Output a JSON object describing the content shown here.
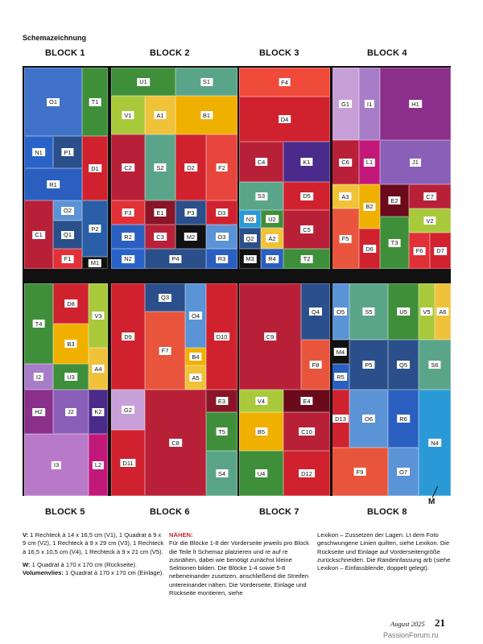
{
  "page": {
    "heading": "Schemazeichnung",
    "blocks_top": [
      "BLOCK 1",
      "BLOCK 2",
      "BLOCK 3",
      "BLOCK 4"
    ],
    "blocks_bottom": [
      "BLOCK 5",
      "BLOCK 6",
      "BLOCK 7",
      "BLOCK 8"
    ],
    "m_mark": "M"
  },
  "colors": {
    "blue": "#2a5fc0",
    "green": "#3f8f3a",
    "red": "#c8202c",
    "purple": "#8a3fa0",
    "teal": "#5aa58a",
    "lime": "#a8c93a",
    "yellow": "#f0b000",
    "orange": "#f07a2a"
  },
  "patches": [
    {
      "label": "O1",
      "c": "#3f72c8",
      "r": [
        0,
        0,
        72,
        85
      ]
    },
    {
      "label": "T1",
      "c": "#3f8f3a",
      "r": [
        72,
        0,
        32,
        85
      ]
    },
    {
      "label": "N1",
      "c": "#2a63c8",
      "r": [
        0,
        85,
        36,
        40
      ]
    },
    {
      "label": "P1",
      "c": "#2a4f8a",
      "r": [
        36,
        85,
        36,
        40
      ]
    },
    {
      "label": "D1",
      "c": "#d0222e",
      "r": [
        72,
        85,
        32,
        80
      ]
    },
    {
      "label": "R1",
      "c": "#2a5fc0",
      "r": [
        0,
        125,
        72,
        40
      ]
    },
    {
      "label": "C1",
      "c": "#b82038",
      "r": [
        0,
        165,
        36,
        85
      ]
    },
    {
      "label": "O2",
      "c": "#5a93d6",
      "r": [
        36,
        165,
        36,
        25
      ]
    },
    {
      "label": "Q1",
      "c": "#2a4f8a",
      "r": [
        36,
        190,
        36,
        35
      ]
    },
    {
      "label": "P2",
      "c": "#2a5fa8",
      "r": [
        72,
        165,
        32,
        70
      ]
    },
    {
      "label": "F1",
      "c": "#e23038",
      "r": [
        36,
        225,
        36,
        25
      ]
    },
    {
      "label": "M1",
      "c": "#111111",
      "r": [
        72,
        235,
        32,
        15
      ]
    },
    {
      "label": "U1",
      "c": "#3f8f3a",
      "r": [
        108,
        0,
        80,
        35
      ]
    },
    {
      "label": "S1",
      "c": "#5aa58a",
      "r": [
        188,
        0,
        77,
        35
      ]
    },
    {
      "label": "V1",
      "c": "#a8c93a",
      "r": [
        108,
        35,
        42,
        48
      ]
    },
    {
      "label": "A1",
      "c": "#f0c23a",
      "r": [
        150,
        35,
        38,
        48
      ]
    },
    {
      "label": "B1",
      "c": "#f0b000",
      "r": [
        188,
        35,
        77,
        48
      ]
    },
    {
      "label": "C2",
      "c": "#b82038",
      "r": [
        108,
        83,
        42,
        82
      ]
    },
    {
      "label": "S2",
      "c": "#5aa58a",
      "r": [
        150,
        83,
        38,
        82
      ]
    },
    {
      "label": "D2",
      "c": "#d0222e",
      "r": [
        188,
        83,
        38,
        82
      ]
    },
    {
      "label": "F2",
      "c": "#e8453c",
      "r": [
        226,
        83,
        39,
        82
      ]
    },
    {
      "label": "F3",
      "c": "#e23038",
      "r": [
        108,
        165,
        42,
        30
      ]
    },
    {
      "label": "E1",
      "c": "#8a1428",
      "r": [
        150,
        165,
        38,
        30
      ]
    },
    {
      "label": "P3",
      "c": "#2a4f8a",
      "r": [
        188,
        165,
        38,
        30
      ]
    },
    {
      "label": "D3",
      "c": "#d0222e",
      "r": [
        226,
        165,
        39,
        30
      ]
    },
    {
      "label": "R2",
      "c": "#2a5fc0",
      "r": [
        108,
        195,
        42,
        30
      ]
    },
    {
      "label": "C3",
      "c": "#b82038",
      "r": [
        150,
        195,
        38,
        30
      ]
    },
    {
      "label": "M2",
      "c": "#111111",
      "r": [
        188,
        195,
        38,
        30
      ]
    },
    {
      "label": "O3",
      "c": "#5a93d6",
      "r": [
        226,
        195,
        39,
        30
      ]
    },
    {
      "label": "N2",
      "c": "#2a63c8",
      "r": [
        108,
        225,
        42,
        25
      ]
    },
    {
      "label": "P4",
      "c": "#2a4f8a",
      "r": [
        150,
        225,
        76,
        25
      ]
    },
    {
      "label": "R3",
      "c": "#2a5fc0",
      "r": [
        226,
        225,
        39,
        25
      ]
    },
    {
      "label": "F4",
      "c": "#f04a3a",
      "r": [
        267,
        0,
        113,
        36
      ]
    },
    {
      "label": "D4",
      "c": "#d0222e",
      "r": [
        267,
        36,
        113,
        56
      ]
    },
    {
      "label": "C4",
      "c": "#b82038",
      "r": [
        267,
        92,
        55,
        50
      ]
    },
    {
      "label": "K1",
      "c": "#4a2a8a",
      "r": [
        322,
        92,
        58,
        50
      ]
    },
    {
      "label": "S3",
      "c": "#5aa58a",
      "r": [
        267,
        142,
        55,
        35
      ]
    },
    {
      "label": "D5",
      "c": "#d0222e",
      "r": [
        322,
        142,
        58,
        35
      ]
    },
    {
      "label": "N3",
      "c": "#2a9ad6",
      "r": [
        267,
        177,
        27,
        22
      ]
    },
    {
      "label": "U2",
      "c": "#3f8f3a",
      "r": [
        294,
        177,
        28,
        22
      ]
    },
    {
      "label": "C5",
      "c": "#b82038",
      "r": [
        322,
        177,
        58,
        48
      ]
    },
    {
      "label": "Q2",
      "c": "#2a4f8a",
      "r": [
        267,
        199,
        27,
        26
      ]
    },
    {
      "label": "A2",
      "c": "#f0c23a",
      "r": [
        294,
        199,
        28,
        26
      ]
    },
    {
      "label": "M3",
      "c": "#111111",
      "r": [
        267,
        225,
        27,
        25
      ]
    },
    {
      "label": "R4",
      "c": "#2a5fc0",
      "r": [
        294,
        225,
        28,
        25
      ]
    },
    {
      "label": "T2",
      "c": "#3f8f3a",
      "r": [
        322,
        225,
        58,
        25
      ]
    },
    {
      "label": "G1",
      "c": "#c8a0d8",
      "r": [
        382,
        0,
        34,
        90
      ]
    },
    {
      "label": "I1",
      "c": "#a77dc8",
      "r": [
        416,
        0,
        26,
        90
      ]
    },
    {
      "label": "H1",
      "c": "#8a2f8a",
      "r": [
        442,
        0,
        88,
        90
      ]
    },
    {
      "label": "C6",
      "c": "#b82038",
      "r": [
        382,
        90,
        34,
        55
      ]
    },
    {
      "label": "L1",
      "c": "#c2187a",
      "r": [
        416,
        90,
        26,
        55
      ]
    },
    {
      "label": "J1",
      "c": "#8a5fb8",
      "r": [
        442,
        90,
        88,
        55
      ]
    },
    {
      "label": "A3",
      "c": "#f0c23a",
      "r": [
        382,
        145,
        34,
        30
      ]
    },
    {
      "label": "B2",
      "c": "#f0b000",
      "r": [
        416,
        145,
        26,
        55
      ]
    },
    {
      "label": "E2",
      "c": "#6a0a1a",
      "r": [
        442,
        145,
        36,
        40
      ]
    },
    {
      "label": "C7",
      "c": "#b82038",
      "r": [
        478,
        145,
        52,
        30
      ]
    },
    {
      "label": "F5",
      "c": "#e8553c",
      "r": [
        382,
        175,
        34,
        75
      ]
    },
    {
      "label": "V2",
      "c": "#a8c93a",
      "r": [
        478,
        175,
        52,
        30
      ]
    },
    {
      "label": "D6",
      "c": "#d0222e",
      "r": [
        416,
        200,
        26,
        50
      ]
    },
    {
      "label": "T3",
      "c": "#3f8f3a",
      "r": [
        442,
        185,
        36,
        65
      ]
    },
    {
      "label": "F6",
      "c": "#e23038",
      "r": [
        478,
        205,
        26,
        45
      ]
    },
    {
      "label": "D7",
      "c": "#d0222e",
      "r": [
        504,
        205,
        26,
        45
      ]
    },
    {
      "label": "D8",
      "c": "#d0222e",
      "r": [
        36,
        268,
        44,
        50
      ]
    },
    {
      "label": "T4",
      "c": "#3f8f3a",
      "r": [
        0,
        268,
        36,
        100
      ]
    },
    {
      "label": "V3",
      "c": "#a8c93a",
      "r": [
        80,
        268,
        24,
        80
      ]
    },
    {
      "label": "B3",
      "c": "#f0b000",
      "r": [
        36,
        318,
        44,
        50
      ]
    },
    {
      "label": "I2",
      "c": "#a77dc8",
      "r": [
        0,
        368,
        36,
        32
      ]
    },
    {
      "label": "U3",
      "c": "#3f8f3a",
      "r": [
        36,
        368,
        44,
        32
      ]
    },
    {
      "label": "A4",
      "c": "#f0c23a",
      "r": [
        80,
        348,
        24,
        52
      ]
    },
    {
      "label": "H2",
      "c": "#8a2f8a",
      "r": [
        0,
        400,
        36,
        55
      ]
    },
    {
      "label": "J2",
      "c": "#8a5fb8",
      "r": [
        36,
        400,
        44,
        55
      ]
    },
    {
      "label": "K2",
      "c": "#4a2a8a",
      "r": [
        80,
        400,
        24,
        55
      ]
    },
    {
      "label": "I3",
      "c": "#b87ac8",
      "r": [
        0,
        455,
        80,
        77
      ]
    },
    {
      "label": "L2",
      "c": "#c2187a",
      "r": [
        80,
        455,
        24,
        77
      ]
    },
    {
      "label": "Q3",
      "c": "#2a4f8a",
      "r": [
        150,
        268,
        50,
        35
      ]
    },
    {
      "label": "D9",
      "c": "#d0222e",
      "r": [
        108,
        268,
        42,
        132
      ]
    },
    {
      "label": "O4",
      "c": "#5a93d6",
      "r": [
        200,
        268,
        26,
        80
      ]
    },
    {
      "label": "F7",
      "c": "#e8553c",
      "r": [
        150,
        303,
        50,
        97
      ]
    },
    {
      "label": "B4",
      "c": "#f0b000",
      "r": [
        200,
        348,
        26,
        22
      ]
    },
    {
      "label": "A5",
      "c": "#f0c23a",
      "r": [
        200,
        370,
        26,
        30
      ]
    },
    {
      "label": "D10",
      "c": "#d0222e",
      "r": [
        226,
        268,
        39,
        132
      ]
    },
    {
      "label": "G2",
      "c": "#c8a0d8",
      "r": [
        108,
        400,
        42,
        50
      ]
    },
    {
      "label": "C8",
      "c": "#b82038",
      "r": [
        150,
        400,
        76,
        132
      ]
    },
    {
      "label": "D11",
      "c": "#d0222e",
      "r": [
        108,
        450,
        42,
        82
      ]
    },
    {
      "label": "E3",
      "c": "#8a1428",
      "r": [
        226,
        400,
        39,
        28
      ]
    },
    {
      "label": "T5",
      "c": "#3f8f3a",
      "r": [
        226,
        428,
        39,
        48
      ]
    },
    {
      "label": "S4",
      "c": "#5aa58a",
      "r": [
        226,
        476,
        39,
        56
      ]
    },
    {
      "label": "C9",
      "c": "#b82038",
      "r": [
        267,
        268,
        77,
        132
      ]
    },
    {
      "label": "Q4",
      "c": "#2a4f8a",
      "r": [
        344,
        268,
        36,
        70
      ]
    },
    {
      "label": "F8",
      "c": "#e8553c",
      "r": [
        344,
        338,
        36,
        62
      ]
    },
    {
      "label": "V4",
      "c": "#a8c93a",
      "r": [
        267,
        400,
        55,
        28
      ]
    },
    {
      "label": "E4",
      "c": "#6a0a1a",
      "r": [
        322,
        400,
        58,
        28
      ]
    },
    {
      "label": "B5",
      "c": "#f0b000",
      "r": [
        267,
        428,
        55,
        48
      ]
    },
    {
      "label": "C10",
      "c": "#b82038",
      "r": [
        322,
        428,
        58,
        48
      ]
    },
    {
      "label": "U4",
      "c": "#3f8f3a",
      "r": [
        267,
        476,
        55,
        56
      ]
    },
    {
      "label": "D12",
      "c": "#d0222e",
      "r": [
        322,
        476,
        58,
        56
      ]
    },
    {
      "label": "O5",
      "c": "#5a93d6",
      "r": [
        382,
        268,
        22,
        70
      ]
    },
    {
      "label": "S5",
      "c": "#5aa58a",
      "r": [
        404,
        268,
        48,
        70
      ]
    },
    {
      "label": "U5",
      "c": "#3f8f3a",
      "r": [
        452,
        268,
        38,
        70
      ]
    },
    {
      "label": "V5",
      "c": "#a8c93a",
      "r": [
        490,
        268,
        20,
        70
      ]
    },
    {
      "label": "A6",
      "c": "#f0c23a",
      "r": [
        510,
        268,
        20,
        70
      ]
    },
    {
      "label": "M4",
      "c": "#111111",
      "r": [
        382,
        338,
        22,
        30
      ]
    },
    {
      "label": "R5",
      "c": "#2a5fc0",
      "r": [
        382,
        368,
        22,
        32
      ]
    },
    {
      "label": "P5",
      "c": "#2a4f8a",
      "r": [
        404,
        338,
        48,
        62
      ]
    },
    {
      "label": "Q5",
      "c": "#2a4f8a",
      "r": [
        452,
        338,
        38,
        62
      ]
    },
    {
      "label": "S6",
      "c": "#5aa58a",
      "r": [
        490,
        338,
        40,
        62
      ]
    },
    {
      "label": "D13",
      "c": "#d0222e",
      "r": [
        382,
        400,
        22,
        72
      ]
    },
    {
      "label": "O6",
      "c": "#5a93d6",
      "r": [
        404,
        400,
        48,
        72
      ]
    },
    {
      "label": "R6",
      "c": "#2a5fc0",
      "r": [
        452,
        400,
        38,
        72
      ]
    },
    {
      "label": "N4",
      "c": "#2a9ad6",
      "r": [
        490,
        400,
        40,
        132
      ]
    },
    {
      "label": "F9",
      "c": "#e8553c",
      "r": [
        382,
        472,
        70,
        60
      ]
    },
    {
      "label": "O7",
      "c": "#5a93d6",
      "r": [
        452,
        472,
        38,
        60
      ]
    }
  ],
  "text": {
    "col1": {
      "v_label": "V:",
      "v_text": " 1 Rechteck à 14 x 16,5 cm (V1), 1 Quadrat à 9 x 9 cm (V2), 1 Rechteck à 9 x 29 cm (V3), 1 Rechteck à 16,5 x 10,5 cm (V4), 1 Rechteck à 9 x 21 cm (V5).",
      "w_label": "W:",
      "w_text": " 1 Quadrat à 170 x 170 cm (Rückseite).",
      "vol_label": "Volumenvlies:",
      "vol_text": " 1 Quadrat à 170 x 170 cm (Einlage)."
    },
    "col2": {
      "heading": "NÄHEN:",
      "body": "Für die Blöcke 1-8 der Vorderseite jeweils pro Block die Teile lt Schemaz platzieren und re auf re zusnähen, dabei wie benötigt zunächst kleine Sektionen bilden. Die Blöcke 1-4 sowie 5-8 nebeneinander zusetzen, anschließend die Streifen untereinander nähen. Die Vorderseite, Einlage und Rückseite montieren, siehe"
    },
    "col3": {
      "body": "Lexikon – Zussetzen der Lagen. Lt dem Foto geschwungene Linien quilten, siehe Lexikon. Die Rückseite und Einlage auf Vorderseitengröße zurückschneiden. Die Randeinfassung arb (siehe Lexikon – Einfassblende, doppelt gelegt)."
    }
  },
  "footer": {
    "date": "August 2025",
    "page_number": "21",
    "watermark": "PassionForum.ru"
  }
}
